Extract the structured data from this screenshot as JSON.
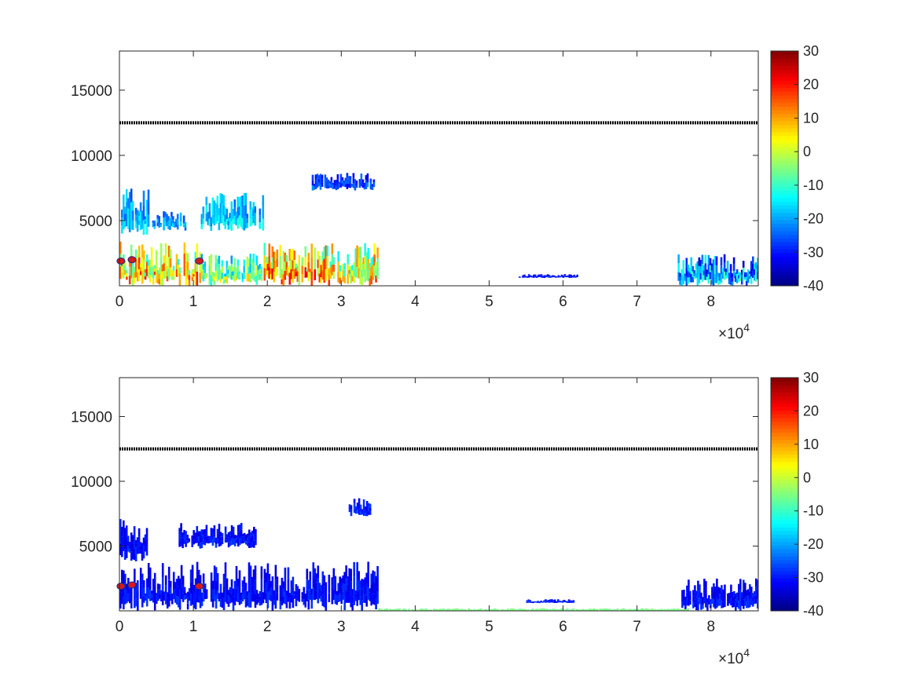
{
  "chart_data": [
    {
      "type": "heatmap",
      "title": "",
      "xlabel": "",
      "ylabel": "",
      "xlim": [
        0,
        86400
      ],
      "ylim": [
        0,
        18000
      ],
      "x_exponent_label": "×10^4",
      "x_exponent_base": "×10",
      "x_exponent_power": "4",
      "xticks": [
        0,
        10000,
        20000,
        30000,
        40000,
        50000,
        60000,
        70000,
        80000
      ],
      "xtick_labels": [
        "0",
        "1",
        "2",
        "3",
        "4",
        "5",
        "6",
        "7",
        "8"
      ],
      "yticks": [
        5000,
        10000,
        15000
      ],
      "ytick_labels": [
        "5000",
        "10000",
        "15000"
      ],
      "grid": false,
      "colorbar": {
        "range": [
          -40,
          30
        ],
        "ticks": [
          30,
          20,
          10,
          0,
          -10,
          -20,
          -30,
          -40
        ],
        "tick_labels": [
          "30",
          "20",
          "10",
          "0",
          "-10",
          "-20",
          "-30",
          "-40"
        ],
        "colormap": "jet"
      },
      "reference_line": {
        "y": 12500,
        "color": "#000000"
      },
      "regions": [
        {
          "x": [
            0,
            4000
          ],
          "y": [
            3800,
            7600
          ],
          "value": -18,
          "scatter": 6
        },
        {
          "x": [
            4000,
            9000
          ],
          "y": [
            4200,
            5800
          ],
          "value": -20,
          "scatter": 5
        },
        {
          "x": [
            11000,
            19500
          ],
          "y": [
            4200,
            7200
          ],
          "value": -16,
          "scatter": 6
        },
        {
          "x": [
            26000,
            34500
          ],
          "y": [
            7300,
            8700
          ],
          "value": -26,
          "scatter": 5
        },
        {
          "x": [
            0,
            11000
          ],
          "y": [
            0,
            3400
          ],
          "value": 8,
          "scatter": 14
        },
        {
          "x": [
            11000,
            19500
          ],
          "y": [
            0,
            2500
          ],
          "value": -4,
          "scatter": 12
        },
        {
          "x": [
            19500,
            28000
          ],
          "y": [
            0,
            3500
          ],
          "value": 10,
          "scatter": 14
        },
        {
          "x": [
            28000,
            35000
          ],
          "y": [
            0,
            3300
          ],
          "value": 5,
          "scatter": 14
        },
        {
          "x": [
            54000,
            62000
          ],
          "y": [
            600,
            900
          ],
          "value": -30,
          "scatter": 4
        },
        {
          "x": [
            75500,
            86400
          ],
          "y": [
            0,
            2500
          ],
          "value": -18,
          "scatter": 12
        }
      ],
      "markers": [
        {
          "x": 200,
          "y": 1900,
          "color": "#d7191c"
        },
        {
          "x": 1700,
          "y": 2000,
          "color": "#d7191c"
        },
        {
          "x": 10800,
          "y": 1900,
          "color": "#d7191c"
        }
      ]
    },
    {
      "type": "heatmap",
      "title": "",
      "xlabel": "",
      "ylabel": "",
      "xlim": [
        0,
        86400
      ],
      "ylim": [
        0,
        18000
      ],
      "x_exponent_label": "×10^4",
      "x_exponent_base": "×10",
      "x_exponent_power": "4",
      "xticks": [
        0,
        10000,
        20000,
        30000,
        40000,
        50000,
        60000,
        70000,
        80000
      ],
      "xtick_labels": [
        "0",
        "1",
        "2",
        "3",
        "4",
        "5",
        "6",
        "7",
        "8"
      ],
      "yticks": [
        5000,
        10000,
        15000
      ],
      "ytick_labels": [
        "5000",
        "10000",
        "15000"
      ],
      "grid": false,
      "colorbar": {
        "range": [
          -40,
          30
        ],
        "ticks": [
          30,
          20,
          10,
          0,
          -10,
          -20,
          -30,
          -40
        ],
        "tick_labels": [
          "30",
          "20",
          "10",
          "0",
          "-10",
          "-20",
          "-30",
          "-40"
        ],
        "colormap": "jet"
      },
      "reference_line": {
        "y": 12500,
        "color": "#000000"
      },
      "regions": [
        {
          "x": [
            0,
            4000
          ],
          "y": [
            3800,
            7200
          ],
          "value": -30,
          "scatter": 3
        },
        {
          "x": [
            8000,
            18500
          ],
          "y": [
            4800,
            6800
          ],
          "value": -30,
          "scatter": 3
        },
        {
          "x": [
            31000,
            34000
          ],
          "y": [
            7300,
            8700
          ],
          "value": -28,
          "scatter": 3
        },
        {
          "x": [
            0,
            35000
          ],
          "y": [
            0,
            3800
          ],
          "value": -30,
          "scatter": 3
        },
        {
          "x": [
            55000,
            61500
          ],
          "y": [
            600,
            900
          ],
          "value": -29,
          "scatter": 2
        },
        {
          "x": [
            76000,
            86400
          ],
          "y": [
            0,
            2500
          ],
          "value": -30,
          "scatter": 3
        },
        {
          "x": [
            35000,
            77000
          ],
          "y": [
            0,
            200
          ],
          "value": -5,
          "scatter": 1
        }
      ],
      "markers": [
        {
          "x": 200,
          "y": 1900,
          "color": "#d7191c"
        },
        {
          "x": 1700,
          "y": 2000,
          "color": "#d7191c"
        },
        {
          "x": 10800,
          "y": 1900,
          "color": "#d7191c"
        }
      ]
    }
  ]
}
